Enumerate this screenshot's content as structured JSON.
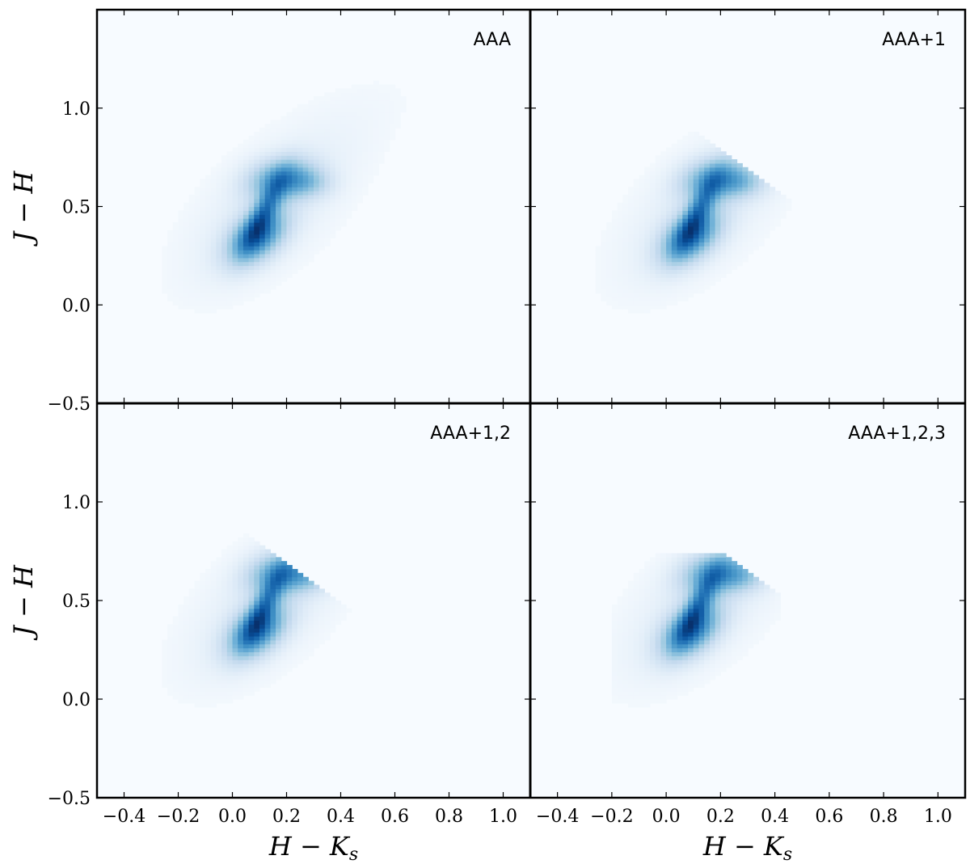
{
  "chart_data": {
    "type": "heatmap",
    "layout": "2x2 grid with shared axes",
    "colormap": "Blues",
    "xlim": [
      -0.5,
      1.1
    ],
    "ylim": [
      -0.5,
      1.5
    ],
    "xticks": [
      -0.4,
      -0.2,
      0.0,
      0.2,
      0.4,
      0.6,
      0.8,
      1.0
    ],
    "xtick_labels": [
      "−0.4",
      "−0.2",
      "0.0",
      "0.2",
      "0.4",
      "0.6",
      "0.8",
      "1.0"
    ],
    "yticks": [
      -0.5,
      0.0,
      0.5,
      1.0
    ],
    "ytick_labels": [
      "−0.5",
      "0.0",
      "0.5",
      "1.0"
    ],
    "xlabel": "H − K",
    "xlabel_sub": "s",
    "ylabel": "J − H",
    "grid": false,
    "density_components": [
      {
        "x": 0.09,
        "y": 0.35,
        "sx": 0.07,
        "sy": 0.09,
        "rho": 0.45,
        "w": 1.0
      },
      {
        "x": 0.18,
        "y": 0.64,
        "sx": 0.08,
        "sy": 0.07,
        "rho": 0.2,
        "w": 0.75
      },
      {
        "x": 0.12,
        "y": 0.48,
        "sx": 0.05,
        "sy": 0.12,
        "rho": 0.8,
        "w": 0.7
      },
      {
        "x": 0.28,
        "y": 0.62,
        "sx": 0.06,
        "sy": 0.05,
        "rho": 0.0,
        "w": 0.3
      },
      {
        "x": 0.12,
        "y": 0.45,
        "sx": 0.2,
        "sy": 0.25,
        "rho": 0.6,
        "w": 0.12
      },
      {
        "x": 0.35,
        "y": 0.85,
        "sx": 0.25,
        "sy": 0.25,
        "rho": 0.7,
        "w": 0.03
      }
    ],
    "panels": [
      {
        "label": "AAA",
        "position": "top-left",
        "cut": {}
      },
      {
        "label": "AAA+1",
        "position": "top-right",
        "cut": {
          "diag_sum": 1.0
        }
      },
      {
        "label": "AAA+1,2",
        "position": "bottom-left",
        "cut": {
          "diag_sum": 0.9,
          "xmax": 0.45
        }
      },
      {
        "label": "AAA+1,2,3",
        "position": "bottom-right",
        "cut": {
          "diag_sum": 0.95,
          "ymax": 0.75,
          "xmin": -0.2,
          "xmax": 0.43
        }
      }
    ]
  }
}
